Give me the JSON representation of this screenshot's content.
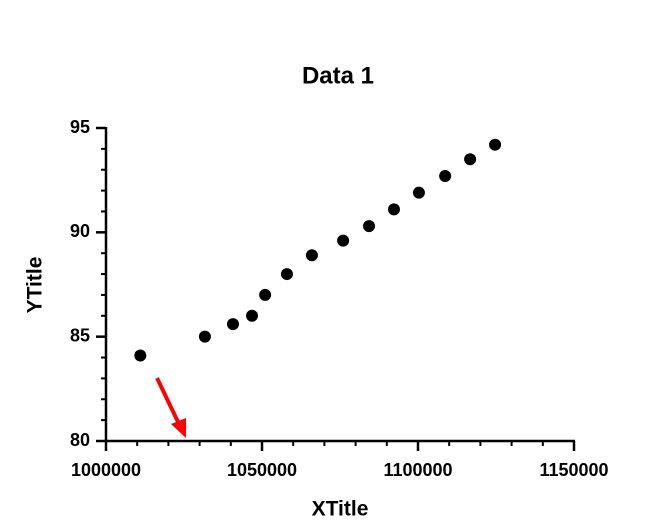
{
  "chart_data": {
    "type": "scatter",
    "title": "Data 1",
    "x_label": "XTitle",
    "y_label": "YTitle",
    "x": [
      1011000,
      1031700,
      1040700,
      1046800,
      1051000,
      1058000,
      1066000,
      1076000,
      1084300,
      1092300,
      1100300,
      1108700,
      1116700,
      1124700
    ],
    "values": [
      84.1,
      85.0,
      85.6,
      86.0,
      87.0,
      88.0,
      88.9,
      89.6,
      90.3,
      91.1,
      91.9,
      92.7,
      93.5,
      94.2
    ],
    "color": "#000000",
    "xlim": [
      1000000,
      1150000
    ],
    "xticks": [
      1000000,
      1050000,
      1100000,
      1150000
    ],
    "xminorticks": [
      1010000,
      1020000,
      1030000,
      1040000,
      1060000,
      1070000,
      1080000,
      1090000,
      1110000,
      1120000,
      1130000,
      1140000
    ],
    "ylim": [
      80,
      95
    ],
    "yticks": [
      80,
      85,
      90,
      95
    ],
    "yminorticks": [
      81,
      82,
      83,
      84,
      86,
      87,
      88,
      89,
      91,
      92,
      93,
      94
    ],
    "grid": false
  }
}
